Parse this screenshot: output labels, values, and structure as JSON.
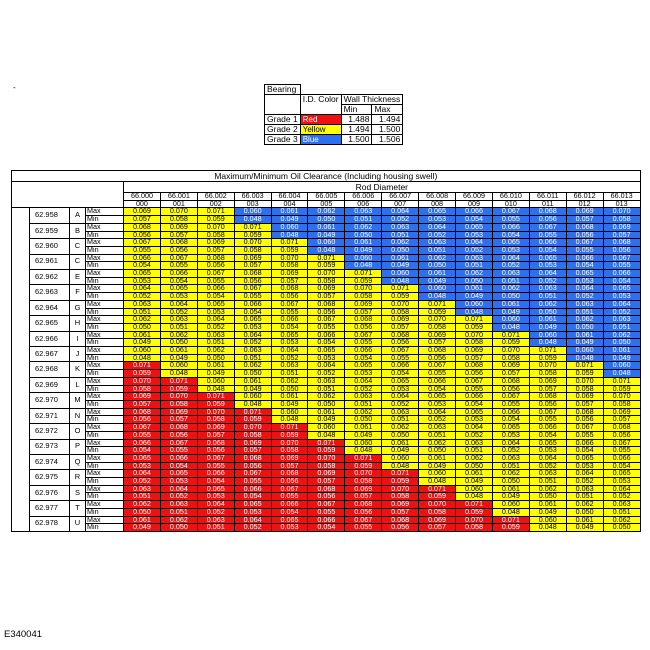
{
  "dash": "-",
  "bearing": {
    "title": "Bearing",
    "col_id_color": "I.D. Color",
    "col_wall": "Wall Thickness",
    "col_min": "Min",
    "col_max": "Max",
    "grades": [
      {
        "label": "Grade 1",
        "color_name": "Red",
        "min": "1.488",
        "max": "1.494"
      },
      {
        "label": "Grade 2",
        "color_name": "Yellow",
        "min": "1.494",
        "max": "1.500"
      },
      {
        "label": "Grade 3",
        "color_name": "Blue",
        "min": "1.500",
        "max": "1.506"
      }
    ]
  },
  "clearance": {
    "title": "Maximum/Minimum Oil Clearance   (Including housing swell)",
    "rod_label": "Rod Diameter",
    "shaft_label": "Shaft Diameter",
    "max_label": "Max",
    "min_label": "Min",
    "columns": [
      {
        "value": "66.000",
        "code": "000"
      },
      {
        "value": "66.001",
        "code": "001"
      },
      {
        "value": "66.002",
        "code": "002"
      },
      {
        "value": "66.003",
        "code": "003"
      },
      {
        "value": "66.004",
        "code": "004"
      },
      {
        "value": "66.005",
        "code": "005"
      },
      {
        "value": "66.006",
        "code": "006"
      },
      {
        "value": "66.007",
        "code": "007"
      },
      {
        "value": "66.008",
        "code": "008"
      },
      {
        "value": "66.009",
        "code": "009"
      },
      {
        "value": "66.010",
        "code": "010"
      },
      {
        "value": "66.011",
        "code": "011"
      },
      {
        "value": "66.012",
        "code": "012"
      },
      {
        "value": "66.013",
        "code": "013"
      }
    ],
    "colors": {
      "r": "#ee1111",
      "y": "#ffff00",
      "b": "#2e6ff0"
    },
    "rows": [
      {
        "diameter": "62.958",
        "letter": "A",
        "max": [
          "0.069",
          "0.070",
          "0.071",
          "0.060",
          "0.061",
          "0.062",
          "0.063",
          "0.064",
          "0.065",
          "0.066",
          "0.067",
          "0.068",
          "0.069",
          "0.070"
        ],
        "min": [
          "0.057",
          "0.058",
          "0.059",
          "0.048",
          "0.049",
          "0.050",
          "0.051",
          "0.052",
          "0.053",
          "0.054",
          "0.055",
          "0.056",
          "0.057",
          "0.058"
        ],
        "colors": "yyybbbbbbbbbbb"
      },
      {
        "diameter": "62.959",
        "letter": "B",
        "max": [
          "0.068",
          "0.069",
          "0.070",
          "0.071",
          "0.060",
          "0.061",
          "0.062",
          "0.063",
          "0.064",
          "0.065",
          "0.066",
          "0.067",
          "0.068",
          "0.069"
        ],
        "min": [
          "0.056",
          "0.057",
          "0.058",
          "0.059",
          "0.048",
          "0.049",
          "0.050",
          "0.051",
          "0.052",
          "0.053",
          "0.054",
          "0.055",
          "0.056",
          "0.057"
        ],
        "colors": "yyyybbbbbbbbbb"
      },
      {
        "diameter": "62.960",
        "letter": "C",
        "max": [
          "0.067",
          "0.068",
          "0.069",
          "0.070",
          "0.071",
          "0.060",
          "0.061",
          "0.062",
          "0.063",
          "0.064",
          "0.065",
          "0.066",
          "0.067",
          "0.068"
        ],
        "min": [
          "0.055",
          "0.056",
          "0.057",
          "0.058",
          "0.059",
          "0.048",
          "0.049",
          "0.050",
          "0.051",
          "0.052",
          "0.053",
          "0.054",
          "0.055",
          "0.056"
        ],
        "colors": "yyyyybbbbbbbbb"
      },
      {
        "diameter": "62.961",
        "letter": "C",
        "max": [
          "0.066",
          "0.067",
          "0.068",
          "0.069",
          "0.070",
          "0.071",
          "0.060",
          "0.061",
          "0.062",
          "0.063",
          "0.064",
          "0.065",
          "0.066",
          "0.067"
        ],
        "min": [
          "0.054",
          "0.055",
          "0.056",
          "0.057",
          "0.058",
          "0.059",
          "0.048",
          "0.049",
          "0.050",
          "0.051",
          "0.052",
          "0.053",
          "0.054",
          "0.055"
        ],
        "colors": "yyyyyybbbbbbbb"
      },
      {
        "diameter": "62.962",
        "letter": "E",
        "max": [
          "0.065",
          "0.066",
          "0.067",
          "0.068",
          "0.069",
          "0.070",
          "0.071",
          "0.060",
          "0.061",
          "0.062",
          "0.063",
          "0.064",
          "0.065",
          "0.066"
        ],
        "min": [
          "0.053",
          "0.054",
          "0.055",
          "0.056",
          "0.057",
          "0.058",
          "0.059",
          "0.048",
          "0.049",
          "0.050",
          "0.051",
          "0.052",
          "0.053",
          "0.054"
        ],
        "colors": "yyyyyyybbbbbbb"
      },
      {
        "diameter": "62.963",
        "letter": "F",
        "max": [
          "0.064",
          "0.065",
          "0.066",
          "0.067",
          "0.068",
          "0.069",
          "0.070",
          "0.071",
          "0.060",
          "0.061",
          "0.062",
          "0.063",
          "0.064",
          "0.065"
        ],
        "min": [
          "0.052",
          "0.053",
          "0.054",
          "0.055",
          "0.056",
          "0.057",
          "0.058",
          "0.059",
          "0.048",
          "0.049",
          "0.050",
          "0.051",
          "0.052",
          "0.053"
        ],
        "colors": "yyyyyyyybbbbbb"
      },
      {
        "diameter": "62.964",
        "letter": "G",
        "max": [
          "0.063",
          "0.064",
          "0.065",
          "0.066",
          "0.067",
          "0.068",
          "0.069",
          "0.070",
          "0.071",
          "0.060",
          "0.061",
          "0.062",
          "0.063",
          "0.064"
        ],
        "min": [
          "0.051",
          "0.052",
          "0.053",
          "0.054",
          "0.055",
          "0.056",
          "0.057",
          "0.058",
          "0.059",
          "0.048",
          "0.049",
          "0.050",
          "0.051",
          "0.052"
        ],
        "colors": "yyyyyyyyybbbbb"
      },
      {
        "diameter": "62.965",
        "letter": "H",
        "max": [
          "0.062",
          "0.063",
          "0.064",
          "0.065",
          "0.066",
          "0.067",
          "0.068",
          "0.069",
          "0.070",
          "0.071",
          "0.060",
          "0.061",
          "0.062",
          "0.063"
        ],
        "min": [
          "0.050",
          "0.051",
          "0.052",
          "0.053",
          "0.054",
          "0.055",
          "0.056",
          "0.057",
          "0.058",
          "0.059",
          "0.048",
          "0.049",
          "0.050",
          "0.051"
        ],
        "colors": "yyyyyyyyyybbbb"
      },
      {
        "diameter": "62.966",
        "letter": "I",
        "max": [
          "0.061",
          "0.062",
          "0.063",
          "0.064",
          "0.065",
          "0.066",
          "0.067",
          "0.068",
          "0.069",
          "0.070",
          "0.071",
          "0.060",
          "0.061",
          "0.062"
        ],
        "min": [
          "0.049",
          "0.050",
          "0.051",
          "0.052",
          "0.053",
          "0.054",
          "0.055",
          "0.056",
          "0.057",
          "0.058",
          "0.059",
          "0.048",
          "0.049",
          "0.050"
        ],
        "colors": "yyyyyyyyyyybbb"
      },
      {
        "diameter": "62.967",
        "letter": "J",
        "max": [
          "0.060",
          "0.061",
          "0.062",
          "0.063",
          "0.064",
          "0.065",
          "0.066",
          "0.067",
          "0.068",
          "0.069",
          "0.070",
          "0.071",
          "0.060",
          "0.061"
        ],
        "min": [
          "0.048",
          "0.049",
          "0.050",
          "0.051",
          "0.052",
          "0.053",
          "0.054",
          "0.055",
          "0.056",
          "0.057",
          "0.058",
          "0.059",
          "0.048",
          "0.049"
        ],
        "colors": "yyyyyyyyyyyybb"
      },
      {
        "diameter": "62.968",
        "letter": "K",
        "max": [
          "0.071",
          "0.060",
          "0.061",
          "0.062",
          "0.063",
          "0.064",
          "0.065",
          "0.066",
          "0.067",
          "0.068",
          "0.069",
          "0.070",
          "0.071",
          "0.060"
        ],
        "min": [
          "0.059",
          "0.048",
          "0.049",
          "0.050",
          "0.051",
          "0.052",
          "0.053",
          "0.054",
          "0.055",
          "0.056",
          "0.057",
          "0.058",
          "0.059",
          "0.048"
        ],
        "colors": "ryyyyyyyyyyyyb"
      },
      {
        "diameter": "62.969",
        "letter": "L",
        "max": [
          "0.070",
          "0.071",
          "0.060",
          "0.061",
          "0.062",
          "0.063",
          "0.064",
          "0.065",
          "0.066",
          "0.067",
          "0.068",
          "0.069",
          "0.070",
          "0.071"
        ],
        "min": [
          "0.058",
          "0.059",
          "0.048",
          "0.049",
          "0.050",
          "0.051",
          "0.052",
          "0.053",
          "0.054",
          "0.055",
          "0.056",
          "0.057",
          "0.058",
          "0.059"
        ],
        "colors": "rryyyyyyyyyyyy"
      },
      {
        "diameter": "62.970",
        "letter": "M",
        "max": [
          "0.069",
          "0.070",
          "0.071",
          "0.060",
          "0.061",
          "0.062",
          "0.063",
          "0.064",
          "0.065",
          "0.066",
          "0.067",
          "0.068",
          "0.069",
          "0.070"
        ],
        "min": [
          "0.057",
          "0.058",
          "0.059",
          "0.048",
          "0.049",
          "0.050",
          "0.051",
          "0.052",
          "0.053",
          "0.054",
          "0.055",
          "0.056",
          "0.057",
          "0.058"
        ],
        "colors": "rrryyyyyyyyyyy"
      },
      {
        "diameter": "62.971",
        "letter": "N",
        "max": [
          "0.068",
          "0.069",
          "0.070",
          "0.071",
          "0.060",
          "0.061",
          "0.062",
          "0.063",
          "0.064",
          "0.065",
          "0.066",
          "0.067",
          "0.068",
          "0.069"
        ],
        "min": [
          "0.056",
          "0.057",
          "0.058",
          "0.059",
          "0.048",
          "0.049",
          "0.050",
          "0.051",
          "0.052",
          "0.053",
          "0.054",
          "0.055",
          "0.056",
          "0.057"
        ],
        "colors": "rrrryyyyyyyyyy"
      },
      {
        "diameter": "62.972",
        "letter": "O",
        "max": [
          "0.067",
          "0.068",
          "0.069",
          "0.070",
          "0.071",
          "0.060",
          "0.061",
          "0.062",
          "0.063",
          "0.064",
          "0.065",
          "0.066",
          "0.067",
          "0.068"
        ],
        "min": [
          "0.055",
          "0.056",
          "0.057",
          "0.058",
          "0.059",
          "0.048",
          "0.049",
          "0.050",
          "0.051",
          "0.052",
          "0.053",
          "0.054",
          "0.055",
          "0.056"
        ],
        "colors": "rrrrryyyyyyyyy"
      },
      {
        "diameter": "62.973",
        "letter": "P",
        "max": [
          "0.066",
          "0.067",
          "0.068",
          "0.069",
          "0.070",
          "0.071",
          "0.060",
          "0.061",
          "0.062",
          "0.063",
          "0.064",
          "0.065",
          "0.066",
          "0.067"
        ],
        "min": [
          "0.054",
          "0.055",
          "0.056",
          "0.057",
          "0.058",
          "0.059",
          "0.048",
          "0.049",
          "0.050",
          "0.051",
          "0.052",
          "0.053",
          "0.054",
          "0.055"
        ],
        "colors": "rrrrrryyyyyyyy"
      },
      {
        "diameter": "62.974",
        "letter": "Q",
        "max": [
          "0.065",
          "0.066",
          "0.067",
          "0.068",
          "0.069",
          "0.070",
          "0.071",
          "0.060",
          "0.061",
          "0.062",
          "0.063",
          "0.064",
          "0.065",
          "0.066"
        ],
        "min": [
          "0.053",
          "0.054",
          "0.055",
          "0.056",
          "0.057",
          "0.058",
          "0.059",
          "0.048",
          "0.049",
          "0.050",
          "0.051",
          "0.052",
          "0.053",
          "0.054"
        ],
        "colors": "rrrrrrryyyyyyy"
      },
      {
        "diameter": "62.975",
        "letter": "R",
        "max": [
          "0.064",
          "0.065",
          "0.066",
          "0.067",
          "0.068",
          "0.069",
          "0.070",
          "0.071",
          "0.060",
          "0.061",
          "0.062",
          "0.063",
          "0.064",
          "0.065"
        ],
        "min": [
          "0.052",
          "0.053",
          "0.054",
          "0.055",
          "0.056",
          "0.057",
          "0.058",
          "0.059",
          "0.048",
          "0.049",
          "0.050",
          "0.051",
          "0.052",
          "0.053"
        ],
        "colors": "rrrrrrrryyyyyy"
      },
      {
        "diameter": "62.976",
        "letter": "S",
        "max": [
          "0.063",
          "0.064",
          "0.065",
          "0.066",
          "0.067",
          "0.068",
          "0.069",
          "0.070",
          "0.071",
          "0.060",
          "0.061",
          "0.062",
          "0.063",
          "0.064"
        ],
        "min": [
          "0.051",
          "0.052",
          "0.053",
          "0.054",
          "0.055",
          "0.056",
          "0.057",
          "0.058",
          "0.059",
          "0.048",
          "0.049",
          "0.050",
          "0.051",
          "0.052"
        ],
        "colors": "rrrrrrrrryyyyy"
      },
      {
        "diameter": "62.977",
        "letter": "T",
        "max": [
          "0.062",
          "0.063",
          "0.064",
          "0.065",
          "0.066",
          "0.067",
          "0.068",
          "0.069",
          "0.070",
          "0.071",
          "0.060",
          "0.061",
          "0.062",
          "0.063"
        ],
        "min": [
          "0.050",
          "0.051",
          "0.052",
          "0.053",
          "0.054",
          "0.055",
          "0.056",
          "0.057",
          "0.058",
          "0.059",
          "0.048",
          "0.049",
          "0.050",
          "0.051"
        ],
        "colors": "rrrrrrrrrryyyy"
      },
      {
        "diameter": "62.978",
        "letter": "U",
        "max": [
          "0.061",
          "0.062",
          "0.063",
          "0.064",
          "0.065",
          "0.066",
          "0.067",
          "0.068",
          "0.069",
          "0.070",
          "0.071",
          "0.060",
          "0.061",
          "0.062"
        ],
        "min": [
          "0.049",
          "0.050",
          "0.051",
          "0.052",
          "0.053",
          "0.054",
          "0.055",
          "0.056",
          "0.057",
          "0.058",
          "0.059",
          "0.048",
          "0.049",
          "0.050"
        ],
        "colors": "rrrrrrrrrrryyy"
      }
    ]
  },
  "figure_id": "E340041"
}
